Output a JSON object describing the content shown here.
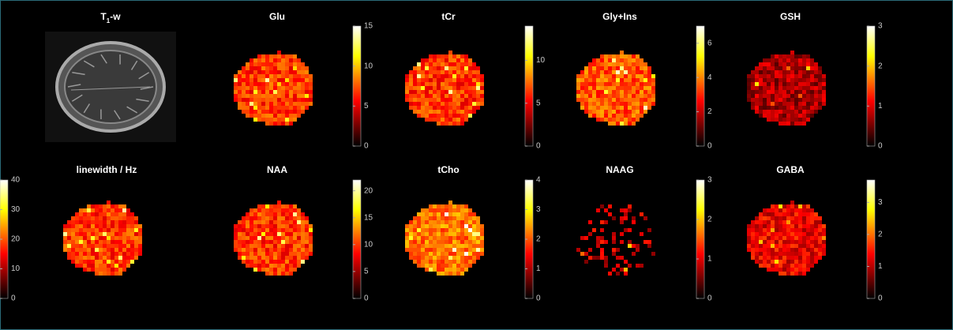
{
  "panels": [
    {
      "title_parts": [
        "T",
        "1",
        "-w"
      ]
    },
    {
      "title": "Glu",
      "clim": [
        0,
        15
      ],
      "ticks": [
        0,
        5,
        10,
        15
      ]
    },
    {
      "title": "tCr",
      "clim": [
        0,
        14
      ],
      "ticks": [
        0,
        5,
        10
      ]
    },
    {
      "title": "Gly+Ins",
      "clim": [
        0,
        7
      ],
      "ticks": [
        0,
        2,
        4,
        6
      ]
    },
    {
      "title": "GSH",
      "clim": [
        0,
        3
      ],
      "ticks": [
        0,
        1,
        2,
        3
      ]
    },
    {
      "title": "linewidth / Hz",
      "clim": [
        0,
        40
      ],
      "ticks": [
        0,
        10,
        20,
        30,
        40
      ]
    },
    {
      "title": "NAA",
      "clim": [
        0,
        22
      ],
      "ticks": [
        0,
        5,
        10,
        15,
        20
      ]
    },
    {
      "title": "tCho",
      "clim": [
        0,
        4
      ],
      "ticks": [
        0,
        1,
        2,
        3,
        4
      ]
    },
    {
      "title": "NAAG",
      "clim": [
        0,
        3
      ],
      "ticks": [
        0,
        1,
        2,
        3
      ]
    },
    {
      "title": "GABA",
      "clim": [
        0,
        3.7
      ],
      "ticks": [
        0,
        1,
        2,
        3
      ]
    }
  ]
}
